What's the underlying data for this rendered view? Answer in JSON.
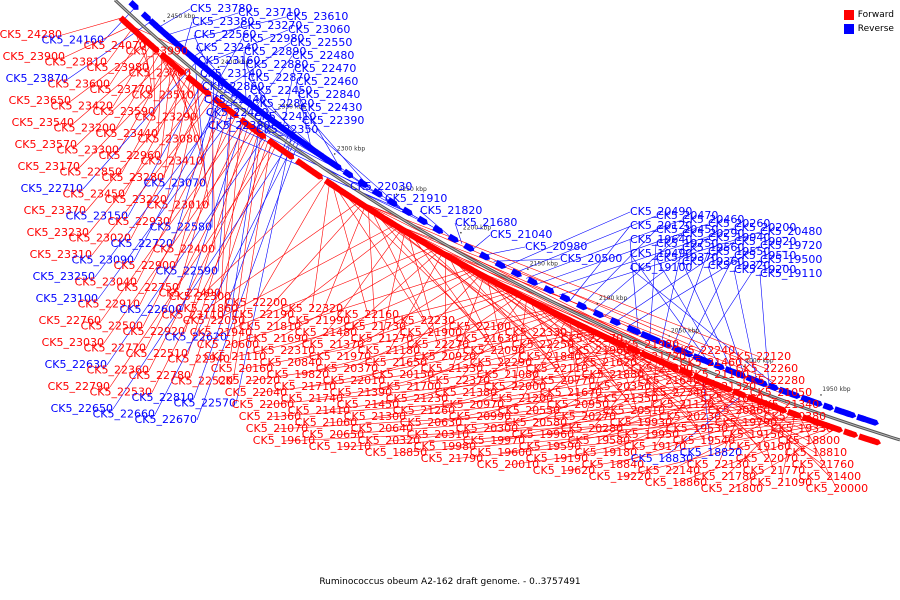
{
  "title": "Ruminococcus obeum A2-162 draft genome. - 0..3757491",
  "legend": [
    {
      "label": "Forward",
      "color": "#ff0000"
    },
    {
      "label": "Reverse",
      "color": "#0000ff"
    }
  ],
  "ticks": [
    "2450 kbp",
    "2400 kbp",
    "2350 kbp",
    "2300 kbp",
    "2250 kbp",
    "2200 kbp",
    "2150 kbp",
    "2100 kbp",
    "2050 kbp",
    "2000 kbp",
    "1950 kbp"
  ],
  "labels_left": [
    {
      "t": "CK5_24280",
      "s": "f"
    },
    {
      "t": "CK5_24160",
      "s": "r"
    },
    {
      "t": "CK5_24070",
      "s": "f"
    },
    {
      "t": "CK5_23990",
      "s": "f"
    },
    {
      "t": "CK5_23900",
      "s": "f"
    },
    {
      "t": "CK5_23810",
      "s": "f"
    },
    {
      "t": "CK5_23980",
      "s": "f"
    },
    {
      "t": "CK5_23700",
      "s": "f"
    },
    {
      "t": "CK5_23870",
      "s": "r"
    },
    {
      "t": "CK5_23600",
      "s": "f"
    },
    {
      "t": "CK5_23770",
      "s": "f"
    },
    {
      "t": "CK5_23510",
      "s": "f"
    },
    {
      "t": "CK5_23650",
      "s": "f"
    },
    {
      "t": "CK5_23420",
      "s": "f"
    },
    {
      "t": "CK5_23590",
      "s": "f"
    },
    {
      "t": "CK5_23290",
      "s": "f"
    },
    {
      "t": "CK5_23540",
      "s": "f"
    },
    {
      "t": "CK5_23200",
      "s": "f"
    },
    {
      "t": "CK5_23440",
      "s": "f"
    },
    {
      "t": "CK5_23080",
      "s": "f"
    },
    {
      "t": "CK5_23570",
      "s": "f"
    },
    {
      "t": "CK5_23300",
      "s": "f"
    },
    {
      "t": "CK5_22960",
      "s": "f"
    },
    {
      "t": "CK5_23410",
      "s": "f"
    },
    {
      "t": "CK5_23170",
      "s": "f"
    },
    {
      "t": "CK5_22850",
      "s": "f"
    },
    {
      "t": "CK5_23280",
      "s": "f"
    },
    {
      "t": "CK5_23070",
      "s": "r"
    },
    {
      "t": "CK5_22710",
      "s": "r"
    },
    {
      "t": "CK5_23450",
      "s": "f"
    },
    {
      "t": "CK5_23220",
      "s": "f"
    },
    {
      "t": "CK5_23010",
      "s": "f"
    },
    {
      "t": "CK5_23370",
      "s": "f"
    },
    {
      "t": "CK5_23150",
      "s": "r"
    },
    {
      "t": "CK5_22930",
      "s": "f"
    },
    {
      "t": "CK5_22580",
      "s": "r"
    },
    {
      "t": "CK5_23230",
      "s": "f"
    },
    {
      "t": "CK5_23020",
      "s": "f"
    },
    {
      "t": "CK5_22720",
      "s": "r"
    },
    {
      "t": "CK5_22400",
      "s": "f"
    },
    {
      "t": "CK5_23310",
      "s": "f"
    },
    {
      "t": "CK5_23090",
      "s": "r"
    },
    {
      "t": "CK5_22900",
      "s": "f"
    },
    {
      "t": "CK5_22590",
      "s": "r"
    },
    {
      "t": "CK5_23250",
      "s": "r"
    },
    {
      "t": "CK5_23040",
      "s": "f"
    },
    {
      "t": "CK5_22750",
      "s": "f"
    },
    {
      "t": "CK5_22490",
      "s": "f"
    },
    {
      "t": "CK5_23100",
      "s": "r"
    },
    {
      "t": "CK5_22910",
      "s": "f"
    },
    {
      "t": "CK5_22600",
      "s": "r"
    },
    {
      "t": "CK5_23110",
      "s": "f"
    },
    {
      "t": "CK5_22760",
      "s": "f"
    },
    {
      "t": "CK5_22500",
      "s": "f"
    },
    {
      "t": "CK5_22920",
      "s": "f"
    },
    {
      "t": "CK5_22620",
      "s": "r"
    },
    {
      "t": "CK5_23030",
      "s": "f"
    },
    {
      "t": "CK5_22770",
      "s": "f"
    },
    {
      "t": "CK5_22510",
      "s": "f"
    },
    {
      "t": "CK5_22940",
      "s": "f"
    },
    {
      "t": "CK5_22630",
      "s": "r"
    },
    {
      "t": "CK5_22360",
      "s": "f"
    },
    {
      "t": "CK5_22780",
      "s": "f"
    },
    {
      "t": "CK5_22520",
      "s": "f"
    },
    {
      "t": "CK5_22790",
      "s": "f"
    },
    {
      "t": "CK5_22530",
      "s": "f"
    },
    {
      "t": "CK5_22810",
      "s": "r"
    },
    {
      "t": "CK5_22570",
      "s": "r"
    },
    {
      "t": "CK5_22650",
      "s": "r"
    },
    {
      "t": "CK5_22660",
      "s": "r"
    },
    {
      "t": "CK5_22670",
      "s": "r"
    }
  ],
  "labels_top": [
    {
      "t": "CK5_23780",
      "s": "r"
    },
    {
      "t": "CK5_23710",
      "s": "r"
    },
    {
      "t": "CK5_23610",
      "s": "r"
    },
    {
      "t": "CK5_23380",
      "s": "r"
    },
    {
      "t": "CK5_23270",
      "s": "r"
    },
    {
      "t": "CK5_23060",
      "s": "r"
    },
    {
      "t": "CK5_22560",
      "s": "r"
    },
    {
      "t": "CK5_22980",
      "s": "r"
    },
    {
      "t": "CK5_22550",
      "s": "r"
    },
    {
      "t": "CK5_23240",
      "s": "r"
    },
    {
      "t": "CK5_22890",
      "s": "r"
    },
    {
      "t": "CK5_22480",
      "s": "r"
    },
    {
      "t": "CK5_23160",
      "s": "r"
    },
    {
      "t": "CK5_22880",
      "s": "r"
    },
    {
      "t": "CK5_22470",
      "s": "r"
    },
    {
      "t": "CK5_23140",
      "s": "r"
    },
    {
      "t": "CK5_22870",
      "s": "r"
    },
    {
      "t": "CK5_22460",
      "s": "r"
    },
    {
      "t": "CK5_22860",
      "s": "r"
    },
    {
      "t": "CK5_22450",
      "s": "r"
    },
    {
      "t": "CK5_22840",
      "s": "r"
    },
    {
      "t": "CK5_22440",
      "s": "r"
    },
    {
      "t": "CK5_22820",
      "s": "r"
    },
    {
      "t": "CK5_22430",
      "s": "r"
    },
    {
      "t": "CK5_22420",
      "s": "r"
    },
    {
      "t": "CK5_22410",
      "s": "r"
    },
    {
      "t": "CK5_22390",
      "s": "r"
    },
    {
      "t": "CK5_22380",
      "s": "r"
    },
    {
      "t": "CK5_22350",
      "s": "r"
    },
    {
      "t": "CK5_22030",
      "s": "r"
    },
    {
      "t": "CK5_21910",
      "s": "r"
    },
    {
      "t": "CK5_21820",
      "s": "r"
    },
    {
      "t": "CK5_21680",
      "s": "r"
    },
    {
      "t": "CK5_21040",
      "s": "r"
    },
    {
      "t": "CK5_20980",
      "s": "r"
    },
    {
      "t": "CK5_20500",
      "s": "r"
    },
    {
      "t": "CK5_20490",
      "s": "r"
    },
    {
      "t": "CK5_20470",
      "s": "r"
    },
    {
      "t": "CK5_20460",
      "s": "r"
    },
    {
      "t": "CK5_20260",
      "s": "r"
    },
    {
      "t": "CK5_20200",
      "s": "r"
    },
    {
      "t": "CK5_20480",
      "s": "r"
    },
    {
      "t": "CK5_20120",
      "s": "r"
    },
    {
      "t": "CK5_20450",
      "s": "r"
    },
    {
      "t": "CK5_20290",
      "s": "r"
    },
    {
      "t": "CK5_19940",
      "s": "r"
    },
    {
      "t": "CK5_19920",
      "s": "r"
    },
    {
      "t": "CK5_19720",
      "s": "r"
    },
    {
      "t": "CK5_19640",
      "s": "r"
    },
    {
      "t": "CK5_19750",
      "s": "r"
    },
    {
      "t": "CK5_19560",
      "s": "r"
    },
    {
      "t": "CK5_19550",
      "s": "r"
    },
    {
      "t": "CK5_19510",
      "s": "r"
    },
    {
      "t": "CK5_19500",
      "s": "r"
    },
    {
      "t": "CK5_19490",
      "s": "r"
    },
    {
      "t": "CK5_19370",
      "s": "r"
    },
    {
      "t": "CK5_19360",
      "s": "r"
    },
    {
      "t": "CK5_19320",
      "s": "r"
    },
    {
      "t": "CK5_19200",
      "s": "r"
    },
    {
      "t": "CK5_19110",
      "s": "r"
    },
    {
      "t": "CK5_19100",
      "s": "r"
    }
  ],
  "labels_bottom": [
    {
      "t": "CK5_22300",
      "s": "f"
    },
    {
      "t": "CK5_22200",
      "s": "f"
    },
    {
      "t": "CK5_22320",
      "s": "f"
    },
    {
      "t": "CK5_22160",
      "s": "f"
    },
    {
      "t": "CK5_22230",
      "s": "f"
    },
    {
      "t": "CK5_22100",
      "s": "f"
    },
    {
      "t": "CK5_22330",
      "s": "f"
    },
    {
      "t": "CK5_22170",
      "s": "f"
    },
    {
      "t": "CK5_21980",
      "s": "f"
    },
    {
      "t": "CK5_22240",
      "s": "f"
    },
    {
      "t": "CK5_22120",
      "s": "f"
    },
    {
      "t": "CK5_21860",
      "s": "f"
    },
    {
      "t": "CK5_22190",
      "s": "f"
    },
    {
      "t": "CK5_21990",
      "s": "f"
    },
    {
      "t": "CK5_21730",
      "s": "f"
    },
    {
      "t": "CK5_21900",
      "s": "f"
    },
    {
      "t": "CK5_21630",
      "s": "f"
    },
    {
      "t": "CK5_22250",
      "s": "f"
    },
    {
      "t": "CK5_21960",
      "s": "f"
    },
    {
      "t": "CK5_21720",
      "s": "f"
    },
    {
      "t": "CK5_21460",
      "s": "f"
    },
    {
      "t": "CK5_22260",
      "s": "f"
    },
    {
      "t": "CK5_22050",
      "s": "f"
    },
    {
      "t": "CK5_21810",
      "s": "f"
    },
    {
      "t": "CK5_21480",
      "s": "f"
    },
    {
      "t": "CK5_21270",
      "s": "f"
    },
    {
      "t": "CK5_22270",
      "s": "f"
    },
    {
      "t": "CK5_22090",
      "s": "f"
    },
    {
      "t": "CK5_21840",
      "s": "f"
    },
    {
      "t": "CK5_21620",
      "s": "f"
    },
    {
      "t": "CK5_21290",
      "s": "f"
    },
    {
      "t": "CK5_21100",
      "s": "f"
    },
    {
      "t": "CK5_22280",
      "s": "f"
    },
    {
      "t": "CK5_21940",
      "s": "f"
    },
    {
      "t": "CK5_21690",
      "s": "f"
    },
    {
      "t": "CK5_21370",
      "s": "f"
    },
    {
      "t": "CK5_21180",
      "s": "f"
    },
    {
      "t": "CK5_20920",
      "s": "f"
    },
    {
      "t": "CK5_22290",
      "s": "f"
    },
    {
      "t": "CK5_22110",
      "s": "f"
    },
    {
      "t": "CK5_21880",
      "s": "f"
    },
    {
      "t": "CK5_21640",
      "s": "f"
    },
    {
      "t": "CK5_21320",
      "s": "f"
    },
    {
      "t": "CK5_21050",
      "s": "f"
    },
    {
      "t": "CK5_20600",
      "s": "f"
    },
    {
      "t": "CK5_22310",
      "s": "f"
    },
    {
      "t": "CK5_21970",
      "s": "f"
    },
    {
      "t": "CK5_21650",
      "s": "f"
    },
    {
      "t": "CK5_21330",
      "s": "f"
    },
    {
      "t": "CK5_21080",
      "s": "f"
    },
    {
      "t": "CK5_20770",
      "s": "f"
    },
    {
      "t": "CK5_20350",
      "s": "f"
    },
    {
      "t": "CK5_22340",
      "s": "f"
    },
    {
      "t": "CK5_21660",
      "s": "f"
    },
    {
      "t": "CK5_21340",
      "s": "f"
    },
    {
      "t": "CK5_21110",
      "s": "f"
    },
    {
      "t": "CK5_20840",
      "s": "f"
    },
    {
      "t": "CK5_20370",
      "s": "f"
    },
    {
      "t": "CK5_20150",
      "s": "f"
    },
    {
      "t": "CK5_22370",
      "s": "f"
    },
    {
      "t": "CK5_22000",
      "s": "f"
    },
    {
      "t": "CK5_21670",
      "s": "f"
    },
    {
      "t": "CK5_21350",
      "s": "f"
    },
    {
      "t": "CK5_21120",
      "s": "f"
    },
    {
      "t": "CK5_20860",
      "s": "f"
    },
    {
      "t": "CK5_20380",
      "s": "f"
    },
    {
      "t": "CK5_20160",
      "s": "f"
    },
    {
      "t": "CK5_19820",
      "s": "f"
    },
    {
      "t": "CK5_22010",
      "s": "f"
    },
    {
      "t": "CK5_21700",
      "s": "f"
    },
    {
      "t": "CK5_21380",
      "s": "f"
    },
    {
      "t": "CK5_21200",
      "s": "f"
    },
    {
      "t": "CK5_20950",
      "s": "f"
    },
    {
      "t": "CK5_20510",
      "s": "f"
    },
    {
      "t": "CK5_20230",
      "s": "f"
    },
    {
      "t": "CK5_19790",
      "s": "f"
    },
    {
      "t": "CK5_19330",
      "s": "f"
    },
    {
      "t": "CK5_22020",
      "s": "f"
    },
    {
      "t": "CK5_21710",
      "s": "f"
    },
    {
      "t": "CK5_21390",
      "s": "f"
    },
    {
      "t": "CK5_21230",
      "s": "f"
    },
    {
      "t": "CK5_20970",
      "s": "f"
    },
    {
      "t": "CK5_20550",
      "s": "f"
    },
    {
      "t": "CK5_20270",
      "s": "f"
    },
    {
      "t": "CK5_19930",
      "s": "f"
    },
    {
      "t": "CK5_19530",
      "s": "f"
    },
    {
      "t": "CK5_19150",
      "s": "f"
    },
    {
      "t": "CK5_18800",
      "s": "f"
    },
    {
      "t": "CK5_22040",
      "s": "f"
    },
    {
      "t": "CK5_21740",
      "s": "f"
    },
    {
      "t": "CK5_21450",
      "s": "f"
    },
    {
      "t": "CK5_21260",
      "s": "f"
    },
    {
      "t": "CK5_20990",
      "s": "f"
    },
    {
      "t": "CK5_20580",
      "s": "f"
    },
    {
      "t": "CK5_20280",
      "s": "f"
    },
    {
      "t": "CK5_19950",
      "s": "f"
    },
    {
      "t": "CK5_19540",
      "s": "f"
    },
    {
      "t": "CK5_19160",
      "s": "f"
    },
    {
      "t": "CK5_18810",
      "s": "f"
    },
    {
      "t": "CK5_22060",
      "s": "f"
    },
    {
      "t": "CK5_21410",
      "s": "f"
    },
    {
      "t": "CK5_21300",
      "s": "f"
    },
    {
      "t": "CK5_20630",
      "s": "f"
    },
    {
      "t": "CK5_20300",
      "s": "f"
    },
    {
      "t": "CK5_19960",
      "s": "f"
    },
    {
      "t": "CK5_19580",
      "s": "f"
    },
    {
      "t": "CK5_19170",
      "s": "f"
    },
    {
      "t": "CK5_18820",
      "s": "r"
    },
    {
      "t": "CK5_22070",
      "s": "f"
    },
    {
      "t": "CK5_21760",
      "s": "f"
    },
    {
      "t": "CK5_21360",
      "s": "f"
    },
    {
      "t": "CK5_21060",
      "s": "f"
    },
    {
      "t": "CK5_20640",
      "s": "f"
    },
    {
      "t": "CK5_20310",
      "s": "f"
    },
    {
      "t": "CK5_19970",
      "s": "f"
    },
    {
      "t": "CK5_19590",
      "s": "f"
    },
    {
      "t": "CK5_19180",
      "s": "f"
    },
    {
      "t": "CK5_18830",
      "s": "r"
    },
    {
      "t": "CK5_22130",
      "s": "f"
    },
    {
      "t": "CK5_21770",
      "s": "f"
    },
    {
      "t": "CK5_21400",
      "s": "f"
    },
    {
      "t": "CK5_21070",
      "s": "f"
    },
    {
      "t": "CK5_20650",
      "s": "f"
    },
    {
      "t": "CK5_20320",
      "s": "f"
    },
    {
      "t": "CK5_19980",
      "s": "f"
    },
    {
      "t": "CK5_19600",
      "s": "f"
    },
    {
      "t": "CK5_19190",
      "s": "f"
    },
    {
      "t": "CK5_18840",
      "s": "f"
    },
    {
      "t": "CK5_22140",
      "s": "f"
    },
    {
      "t": "CK5_21780",
      "s": "f"
    },
    {
      "t": "CK5_21090",
      "s": "f"
    },
    {
      "t": "CK5_20000",
      "s": "f"
    },
    {
      "t": "CK5_19610",
      "s": "f"
    },
    {
      "t": "CK5_19210",
      "s": "f"
    },
    {
      "t": "CK5_18850",
      "s": "f"
    },
    {
      "t": "CK5_21790",
      "s": "f"
    },
    {
      "t": "CK5_20010",
      "s": "f"
    },
    {
      "t": "CK5_19620",
      "s": "f"
    },
    {
      "t": "CK5_19220",
      "s": "f"
    },
    {
      "t": "CK5_18860",
      "s": "f"
    },
    {
      "t": "CK5_21800",
      "s": "f"
    }
  ]
}
